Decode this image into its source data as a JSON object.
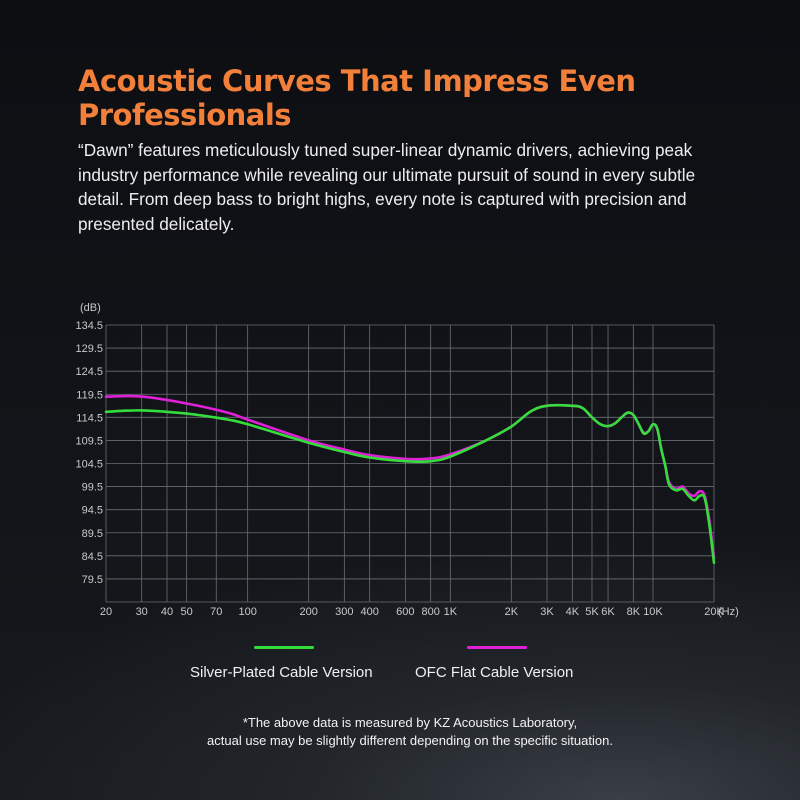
{
  "heading": {
    "title": "Acoustic Curves That Impress Even Professionals",
    "description": "“Dawn”  features meticulously tuned super-linear dynamic drivers, achieving peak industry performance while revealing our ultimate pursuit of sound in every subtle detail. From deep bass to bright highs, every note is captured with precision and presented delicately."
  },
  "chart_data": {
    "type": "line",
    "x_scale": "log",
    "xlim": [
      20,
      20000
    ],
    "ylim": [
      74.5,
      134.5
    ],
    "ylabel": "(dB)",
    "xlabel": "(Hz)",
    "grid": true,
    "y_ticks": [
      "134.5",
      "129.5",
      "124.5",
      "119.5",
      "114.5",
      "109.5",
      "104.5",
      "99.5",
      "94.5",
      "89.5",
      "84.5",
      "79.5"
    ],
    "x_ticks": [
      {
        "v": 20,
        "label": "20"
      },
      {
        "v": 30,
        "label": "30"
      },
      {
        "v": 40,
        "label": "40"
      },
      {
        "v": 50,
        "label": "50"
      },
      {
        "v": 70,
        "label": "70"
      },
      {
        "v": 100,
        "label": "100"
      },
      {
        "v": 200,
        "label": "200"
      },
      {
        "v": 300,
        "label": "300"
      },
      {
        "v": 400,
        "label": "400"
      },
      {
        "v": 600,
        "label": "600"
      },
      {
        "v": 800,
        "label": "800"
      },
      {
        "v": 1000,
        "label": "1K"
      },
      {
        "v": 2000,
        "label": "2K"
      },
      {
        "v": 3000,
        "label": "3K"
      },
      {
        "v": 4000,
        "label": "4K"
      },
      {
        "v": 5000,
        "label": "5K"
      },
      {
        "v": 6000,
        "label": "6K"
      },
      {
        "v": 8000,
        "label": "8K"
      },
      {
        "v": 10000,
        "label": "10K"
      },
      {
        "v": 20000,
        "label": "20K"
      }
    ],
    "series": [
      {
        "name": "OFC Flat Cable Version",
        "color": "#e020d8",
        "points": [
          [
            20,
            119.0
          ],
          [
            30,
            119.0
          ],
          [
            50,
            117.5
          ],
          [
            80,
            115.5
          ],
          [
            100,
            114.0
          ],
          [
            200,
            109.5
          ],
          [
            300,
            107.5
          ],
          [
            400,
            106.3
          ],
          [
            600,
            105.5
          ],
          [
            800,
            105.6
          ],
          [
            1000,
            106.5
          ],
          [
            1500,
            109.5
          ],
          [
            2000,
            112.5
          ],
          [
            2500,
            115.8
          ],
          [
            3000,
            117.0
          ],
          [
            4000,
            117.0
          ],
          [
            4500,
            116.5
          ],
          [
            5000,
            114.5
          ],
          [
            5500,
            113.0
          ],
          [
            6000,
            112.6
          ],
          [
            6500,
            113.2
          ],
          [
            7000,
            114.5
          ],
          [
            7500,
            115.5
          ],
          [
            8000,
            115.0
          ],
          [
            8500,
            113.0
          ],
          [
            9000,
            111.2
          ],
          [
            9500,
            111.5
          ],
          [
            10000,
            113.0
          ],
          [
            10500,
            112.0
          ],
          [
            11000,
            107.5
          ],
          [
            11500,
            104.0
          ],
          [
            12000,
            100.5
          ],
          [
            13000,
            99.0
          ],
          [
            14000,
            99.5
          ],
          [
            15000,
            98.0
          ],
          [
            16000,
            97.5
          ],
          [
            17000,
            98.5
          ],
          [
            18000,
            97.5
          ],
          [
            19000,
            92.0
          ],
          [
            20000,
            84.0
          ]
        ]
      },
      {
        "name": "Silver-Plated Cable Version",
        "color": "#35dd3c",
        "points": [
          [
            20,
            115.7
          ],
          [
            30,
            116.0
          ],
          [
            50,
            115.3
          ],
          [
            80,
            114.0
          ],
          [
            100,
            113.0
          ],
          [
            200,
            109.0
          ],
          [
            300,
            107.0
          ],
          [
            400,
            105.8
          ],
          [
            600,
            105.0
          ],
          [
            800,
            105.0
          ],
          [
            1000,
            106.0
          ],
          [
            1500,
            109.5
          ],
          [
            2000,
            112.5
          ],
          [
            2500,
            115.8
          ],
          [
            3000,
            117.0
          ],
          [
            4000,
            117.0
          ],
          [
            4500,
            116.5
          ],
          [
            5000,
            114.5
          ],
          [
            5500,
            113.0
          ],
          [
            6000,
            112.6
          ],
          [
            6500,
            113.2
          ],
          [
            7000,
            114.5
          ],
          [
            7500,
            115.5
          ],
          [
            8000,
            115.0
          ],
          [
            8500,
            113.0
          ],
          [
            9000,
            111.0
          ],
          [
            9500,
            111.5
          ],
          [
            10000,
            113.0
          ],
          [
            10500,
            112.0
          ],
          [
            11000,
            107.5
          ],
          [
            11500,
            104.0
          ],
          [
            12000,
            100.0
          ],
          [
            13000,
            98.7
          ],
          [
            14000,
            99.0
          ],
          [
            15000,
            97.5
          ],
          [
            16000,
            96.5
          ],
          [
            17000,
            97.5
          ],
          [
            18000,
            97.0
          ],
          [
            19000,
            91.0
          ],
          [
            20000,
            83.0
          ]
        ]
      }
    ]
  },
  "legend": {
    "silver_label": "Silver-Plated Cable Version",
    "ofc_label": "OFC Flat Cable Version",
    "silver_color": "#35dd3c",
    "ofc_color": "#e020d8"
  },
  "footnote": {
    "line1": "*The above data is measured by KZ Acoustics Laboratory,",
    "line2": "actual use may be slightly different depending on the specific situation."
  }
}
